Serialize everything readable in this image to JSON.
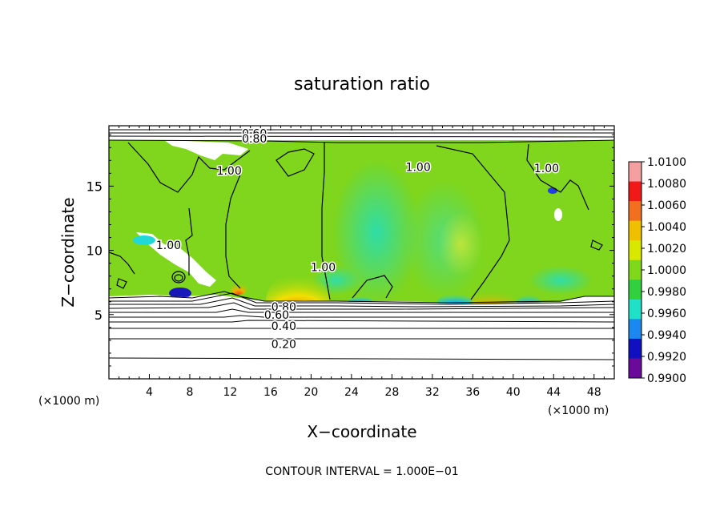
{
  "chart_data": {
    "type": "heatmap",
    "title": "saturation ratio",
    "xlabel": "X−coordinate",
    "ylabel": "Z−coordinate",
    "x_unit_left": "(×1000 m)",
    "x_unit_right": "(×1000 m)",
    "footer": "CONTOUR INTERVAL = 1.000E−01",
    "xlim": [
      0,
      50
    ],
    "ylim": [
      0,
      19.7
    ],
    "x_ticks": [
      "4",
      "8",
      "12",
      "16",
      "20",
      "24",
      "28",
      "32",
      "36",
      "40",
      "44",
      "48"
    ],
    "y_ticks": [
      "5",
      "10",
      "15"
    ],
    "colorbar": {
      "labels": [
        "1.0100",
        "1.0080",
        "1.0060",
        "1.0040",
        "1.0020",
        "1.0000",
        "0.9980",
        "0.9960",
        "0.9940",
        "0.9920",
        "0.9900"
      ],
      "colors": [
        "#f4a0a0",
        "#f01818",
        "#f07020",
        "#f0c000",
        "#d8e800",
        "#80d81c",
        "#30d040",
        "#20e0c8",
        "#1a88ee",
        "#1010c0",
        "#6a0a9a"
      ]
    },
    "contour_labels": [
      {
        "text": "0.60",
        "x": 14.4,
        "z": 19.1
      },
      {
        "text": "0.80",
        "x": 14.4,
        "z": 18.7
      },
      {
        "text": "1.00",
        "x": 11.9,
        "z": 16.2
      },
      {
        "text": "1.00",
        "x": 30.6,
        "z": 16.5
      },
      {
        "text": "1.00",
        "x": 43.3,
        "z": 16.4
      },
      {
        "text": "1.00",
        "x": 5.9,
        "z": 10.4
      },
      {
        "text": "1.00",
        "x": 21.2,
        "z": 8.7
      },
      {
        "text": "0.80",
        "x": 17.3,
        "z": 5.6
      },
      {
        "text": "0.60",
        "x": 16.6,
        "z": 5.0
      },
      {
        "text": "0.40",
        "x": 17.3,
        "z": 4.1
      },
      {
        "text": "0.20",
        "x": 17.3,
        "z": 2.7
      }
    ]
  }
}
